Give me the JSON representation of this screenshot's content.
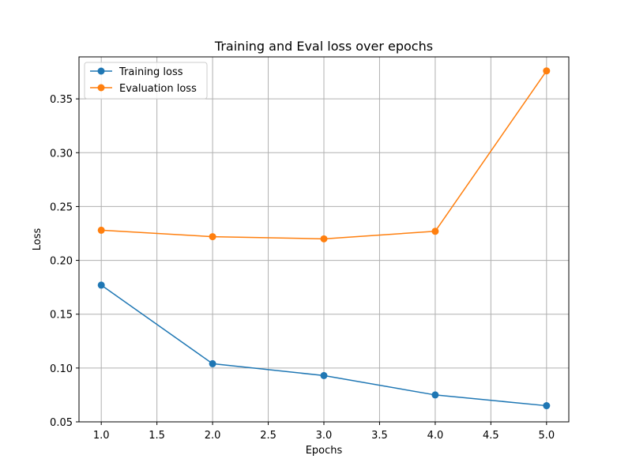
{
  "chart_data": {
    "type": "line",
    "title": "Training and Eval loss over epochs",
    "xlabel": "Epochs",
    "ylabel": "Loss",
    "x": [
      1,
      2,
      3,
      4,
      5
    ],
    "xlim": [
      0.8,
      5.2
    ],
    "ylim": [
      0.05,
      0.389
    ],
    "xticks": [
      1.0,
      1.5,
      2.0,
      2.5,
      3.0,
      3.5,
      4.0,
      4.5,
      5.0
    ],
    "xtick_labels": [
      "1.0",
      "1.5",
      "2.0",
      "2.5",
      "3.0",
      "3.5",
      "4.0",
      "4.5",
      "5.0"
    ],
    "yticks": [
      0.05,
      0.1,
      0.15,
      0.2,
      0.25,
      0.3,
      0.35
    ],
    "ytick_labels": [
      "0.05",
      "0.10",
      "0.15",
      "0.20",
      "0.25",
      "0.30",
      "0.35"
    ],
    "grid": true,
    "legend_position": "top-left",
    "series": [
      {
        "name": "Training loss",
        "color": "#1f77b4",
        "values": [
          0.177,
          0.104,
          0.093,
          0.075,
          0.065
        ]
      },
      {
        "name": "Evaluation loss",
        "color": "#ff7f0e",
        "values": [
          0.228,
          0.222,
          0.22,
          0.227,
          0.376
        ]
      }
    ]
  }
}
